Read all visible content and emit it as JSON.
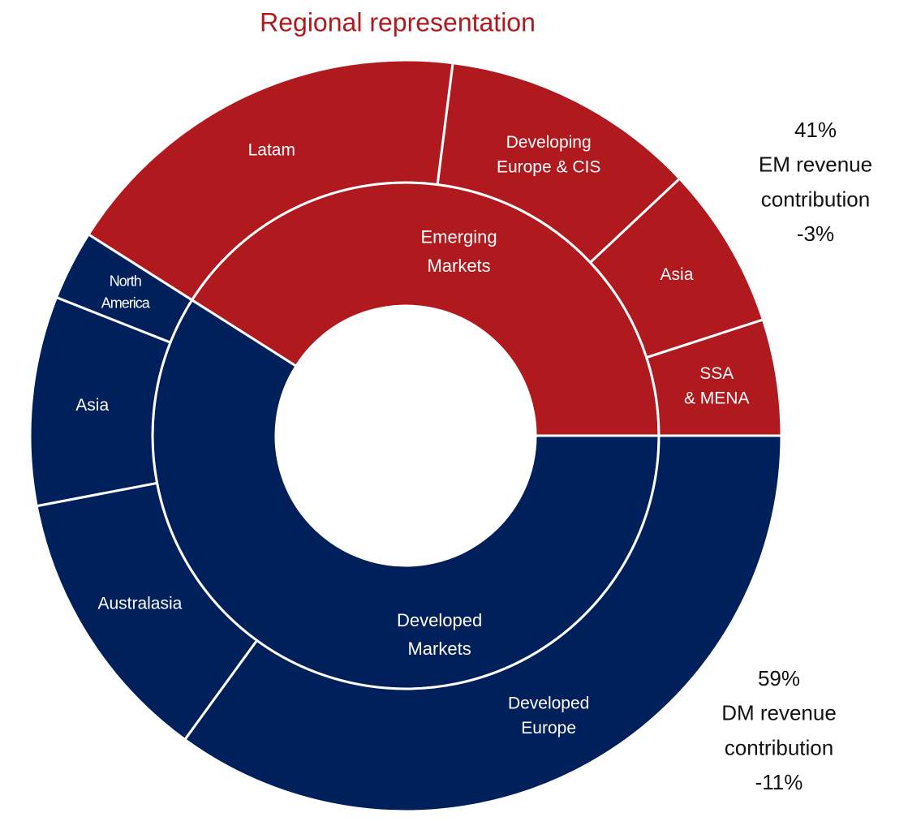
{
  "chart_data": {
    "type": "sunburst",
    "title": "Regional representation",
    "inner": {
      "categories": [
        "Emerging\nMarkets",
        "Developed\nMarkets"
      ],
      "values": [
        41,
        59
      ],
      "value_labels": [
        "41%",
        "59%"
      ],
      "colors": [
        "#b0191e",
        "#00205b"
      ]
    },
    "outer": {
      "categories": [
        "SSA\n& MENA",
        "Asia",
        "Developing\nEurope & CIS",
        "Latam",
        "North\nAmerica",
        "Asia",
        "Australasia",
        "Developed\nEurope"
      ],
      "values": [
        5,
        7,
        11,
        18,
        3,
        9,
        12,
        35
      ],
      "parents": [
        0,
        0,
        0,
        0,
        1,
        1,
        1,
        1
      ]
    },
    "annotations": [
      "EM revenue\ncontribution",
      "DM revenue\ncontribution"
    ],
    "changes": [
      -3,
      -11
    ],
    "change_labels": [
      "-3%",
      "-11%"
    ]
  }
}
